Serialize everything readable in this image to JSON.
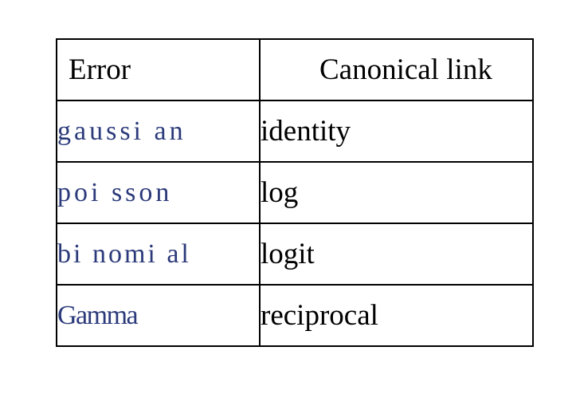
{
  "table": {
    "headers": [
      "Error",
      "Canonical link"
    ],
    "rows": [
      {
        "error": "gaussi an",
        "link": "identity"
      },
      {
        "error": "poi sson",
        "link": "log"
      },
      {
        "error": "bi nomi al",
        "link": "logit"
      },
      {
        "error": "Gamma",
        "link": "reciprocal"
      }
    ],
    "error_text_color": "#2b3a7a",
    "link_text_color": "#000000",
    "border_color": "#000000"
  }
}
